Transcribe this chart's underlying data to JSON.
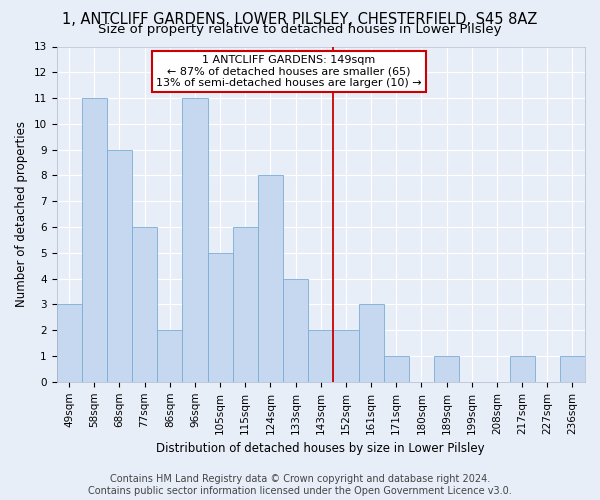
{
  "title": "1, ANTCLIFF GARDENS, LOWER PILSLEY, CHESTERFIELD, S45 8AZ",
  "subtitle": "Size of property relative to detached houses in Lower Pilsley",
  "xlabel": "Distribution of detached houses by size in Lower Pilsley",
  "ylabel": "Number of detached properties",
  "footer_line1": "Contains HM Land Registry data © Crown copyright and database right 2024.",
  "footer_line2": "Contains public sector information licensed under the Open Government Licence v3.0.",
  "categories": [
    "49sqm",
    "58sqm",
    "68sqm",
    "77sqm",
    "86sqm",
    "96sqm",
    "105sqm",
    "115sqm",
    "124sqm",
    "133sqm",
    "143sqm",
    "152sqm",
    "161sqm",
    "171sqm",
    "180sqm",
    "189sqm",
    "199sqm",
    "208sqm",
    "217sqm",
    "227sqm",
    "236sqm"
  ],
  "values": [
    3,
    11,
    9,
    6,
    2,
    11,
    5,
    6,
    8,
    4,
    2,
    2,
    3,
    1,
    0,
    1,
    0,
    0,
    1,
    0,
    1
  ],
  "bar_color": "#c5d8f0",
  "bar_edgecolor": "#7aadd4",
  "vline_index": 11,
  "vline_color": "#cc0000",
  "annotation_line1": "1 ANTCLIFF GARDENS: 149sqm",
  "annotation_line2": "← 87% of detached houses are smaller (65)",
  "annotation_line3": "13% of semi-detached houses are larger (10) →",
  "annotation_box_color": "#cc0000",
  "annotation_fill": "white",
  "ylim_max": 13,
  "bg_color": "#e8eef8",
  "grid_color": "white",
  "title_fontsize": 10.5,
  "subtitle_fontsize": 9.5,
  "axis_label_fontsize": 8.5,
  "tick_fontsize": 7.5,
  "annotation_fontsize": 8,
  "footer_fontsize": 7
}
